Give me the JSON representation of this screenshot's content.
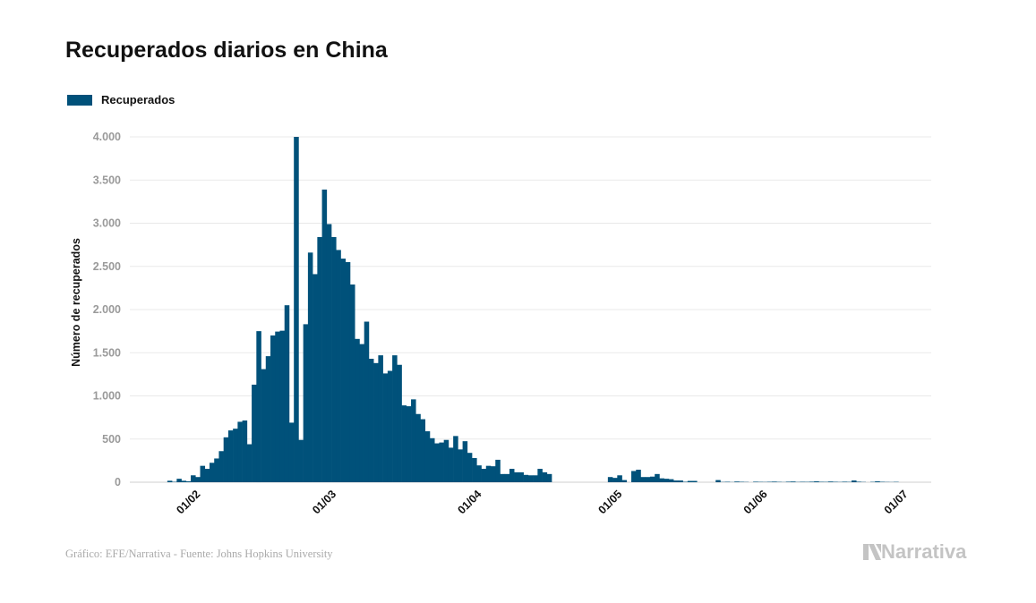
{
  "title": "Recuperados diarios en China",
  "footer": "Gráfico: EFE/Narrativa - Fuente: Johns Hopkins University",
  "logo": "Narrativa",
  "colors": {
    "bar": "#00517a",
    "grid": "#e9e9e9",
    "tick_label": "#9a9a9a"
  },
  "chart_data": {
    "type": "bar",
    "title": "Recuperados diarios en China",
    "legend": {
      "entries": [
        "Recuperados"
      ],
      "placement": "top-left"
    },
    "xlabel": "",
    "ylabel": "Número de recuperados",
    "ylim": [
      0,
      4000
    ],
    "xlim": [
      "2020-01-18",
      "2020-07-07"
    ],
    "grid": true,
    "y_ticks": [
      {
        "value": 0,
        "label": "0"
      },
      {
        "value": 500,
        "label": "500"
      },
      {
        "value": 1000,
        "label": "1.000"
      },
      {
        "value": 1500,
        "label": "1.500"
      },
      {
        "value": 2000,
        "label": "2.000"
      },
      {
        "value": 2500,
        "label": "2.500"
      },
      {
        "value": 3000,
        "label": "3.000"
      },
      {
        "value": 3500,
        "label": "3.500"
      },
      {
        "value": 4000,
        "label": "4.000"
      }
    ],
    "x_ticks": [
      {
        "value": "2020-02-01",
        "label": "01/02"
      },
      {
        "value": "2020-03-01",
        "label": "01/03"
      },
      {
        "value": "2020-04-01",
        "label": "01/04"
      },
      {
        "value": "2020-05-01",
        "label": "01/05"
      },
      {
        "value": "2020-06-01",
        "label": "01/06"
      },
      {
        "value": "2020-07-01",
        "label": "01/07"
      }
    ],
    "series": [
      {
        "name": "Recuperados",
        "x": [
          "2020-01-26",
          "2020-01-27",
          "2020-01-28",
          "2020-01-29",
          "2020-01-30",
          "2020-01-31",
          "2020-02-01",
          "2020-02-02",
          "2020-02-03",
          "2020-02-04",
          "2020-02-05",
          "2020-02-06",
          "2020-02-07",
          "2020-02-08",
          "2020-02-09",
          "2020-02-10",
          "2020-02-11",
          "2020-02-12",
          "2020-02-13",
          "2020-02-14",
          "2020-02-15",
          "2020-02-16",
          "2020-02-17",
          "2020-02-18",
          "2020-02-19",
          "2020-02-20",
          "2020-02-21",
          "2020-02-22",
          "2020-02-23",
          "2020-02-24",
          "2020-02-25",
          "2020-02-26",
          "2020-02-27",
          "2020-02-28",
          "2020-02-29",
          "2020-03-01",
          "2020-03-02",
          "2020-03-03",
          "2020-03-04",
          "2020-03-05",
          "2020-03-06",
          "2020-03-07",
          "2020-03-08",
          "2020-03-09",
          "2020-03-10",
          "2020-03-11",
          "2020-03-12",
          "2020-03-13",
          "2020-03-14",
          "2020-03-15",
          "2020-03-16",
          "2020-03-17",
          "2020-03-18",
          "2020-03-19",
          "2020-03-20",
          "2020-03-21",
          "2020-03-22",
          "2020-03-23",
          "2020-03-24",
          "2020-03-25",
          "2020-03-26",
          "2020-03-27",
          "2020-03-28",
          "2020-03-29",
          "2020-03-30",
          "2020-03-31",
          "2020-04-01",
          "2020-04-02",
          "2020-04-03",
          "2020-04-04",
          "2020-04-05",
          "2020-04-06",
          "2020-04-07",
          "2020-04-08",
          "2020-04-09",
          "2020-04-10",
          "2020-04-11",
          "2020-04-12",
          "2020-04-13",
          "2020-04-14",
          "2020-04-15",
          "2020-04-16",
          "2020-04-17",
          "2020-04-18",
          "2020-04-19",
          "2020-04-20",
          "2020-04-21",
          "2020-04-22",
          "2020-04-23",
          "2020-04-24",
          "2020-04-25",
          "2020-04-26",
          "2020-04-27",
          "2020-04-28",
          "2020-04-29",
          "2020-04-30",
          "2020-05-01",
          "2020-05-02",
          "2020-05-03",
          "2020-05-04",
          "2020-05-05",
          "2020-05-06",
          "2020-05-07",
          "2020-05-08",
          "2020-05-09",
          "2020-05-10",
          "2020-05-11",
          "2020-05-12",
          "2020-05-13",
          "2020-05-14",
          "2020-05-15",
          "2020-05-16",
          "2020-05-17",
          "2020-05-18",
          "2020-05-19",
          "2020-05-20",
          "2020-05-21",
          "2020-05-22",
          "2020-05-23",
          "2020-05-24",
          "2020-05-25",
          "2020-05-26",
          "2020-05-27",
          "2020-05-28",
          "2020-05-29",
          "2020-05-30",
          "2020-05-31",
          "2020-06-01",
          "2020-06-02",
          "2020-06-03",
          "2020-06-04",
          "2020-06-05",
          "2020-06-06",
          "2020-06-07",
          "2020-06-08",
          "2020-06-09",
          "2020-06-10",
          "2020-06-11",
          "2020-06-12",
          "2020-06-13",
          "2020-06-14",
          "2020-06-15",
          "2020-06-16",
          "2020-06-17",
          "2020-06-18",
          "2020-06-19",
          "2020-06-20",
          "2020-06-21",
          "2020-06-22",
          "2020-06-23",
          "2020-06-24",
          "2020-06-25",
          "2020-06-26",
          "2020-06-27",
          "2020-06-28",
          "2020-06-29"
        ],
        "values": [
          17,
          5,
          40,
          17,
          10,
          80,
          60,
          190,
          155,
          225,
          275,
          360,
          520,
          600,
          620,
          700,
          715,
          440,
          1130,
          1750,
          1310,
          1460,
          1700,
          1745,
          1755,
          2050,
          690,
          4000,
          490,
          1830,
          2660,
          2410,
          2840,
          3390,
          2990,
          2840,
          2690,
          2590,
          2550,
          2290,
          1660,
          1600,
          1860,
          1430,
          1380,
          1470,
          1260,
          1290,
          1470,
          1360,
          890,
          880,
          960,
          790,
          730,
          590,
          510,
          450,
          460,
          490,
          400,
          535,
          380,
          475,
          340,
          280,
          195,
          155,
          190,
          185,
          260,
          95,
          95,
          155,
          115,
          115,
          85,
          80,
          80,
          155,
          115,
          95,
          0,
          0,
          0,
          0,
          0,
          0,
          0,
          0,
          0,
          0,
          0,
          0,
          60,
          50,
          80,
          25,
          0,
          130,
          145,
          60,
          60,
          65,
          95,
          45,
          40,
          35,
          20,
          20,
          5,
          15,
          15,
          0,
          0,
          0,
          0,
          25,
          3,
          5,
          2,
          8,
          5,
          3,
          0,
          6,
          4,
          3,
          5,
          7,
          4,
          2,
          6,
          8,
          3,
          5,
          4,
          6,
          10,
          5,
          4,
          8,
          5,
          3,
          6,
          4,
          20,
          6,
          3,
          0,
          4,
          10,
          5,
          3,
          2,
          4
        ]
      }
    ]
  }
}
